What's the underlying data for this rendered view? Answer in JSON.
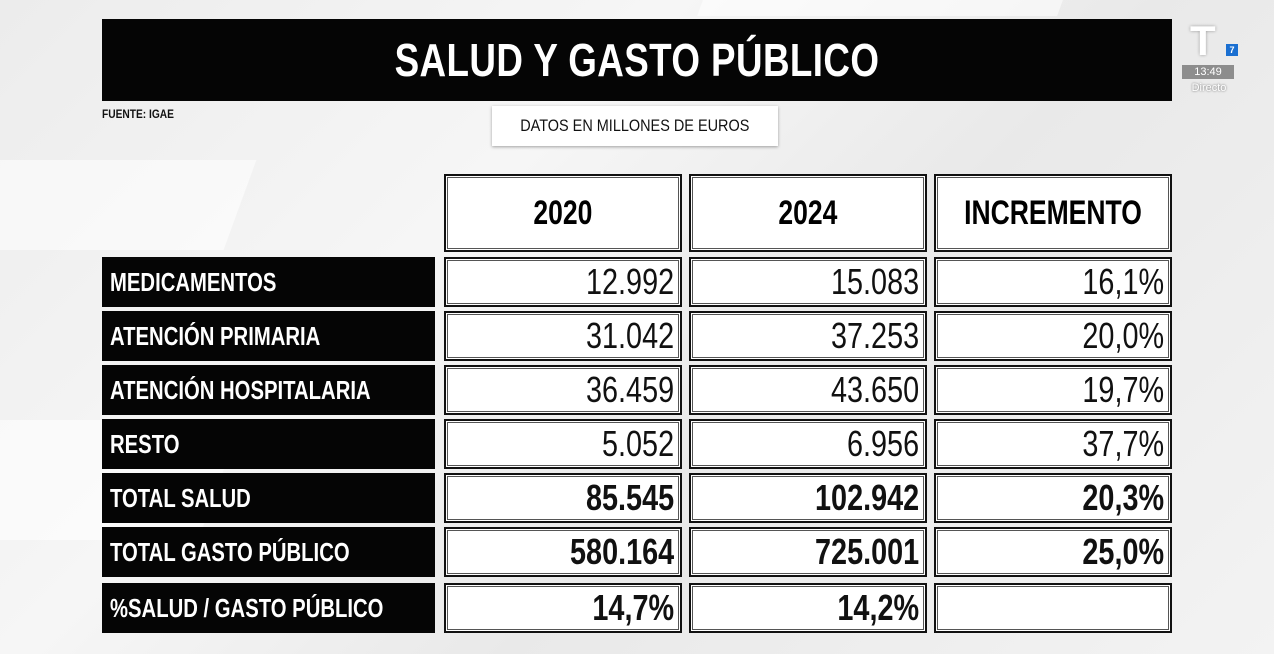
{
  "title": "SALUD Y GASTO PÚBLICO",
  "source": "FUENTE: IGAE",
  "units": "DATOS EN MILLONES DE EUROS",
  "channel": {
    "logo": "T",
    "badge": "7",
    "time": "13:49",
    "status": "Directo"
  },
  "table": {
    "headers": [
      "2020",
      "2024",
      "INCREMENTO"
    ],
    "rows": [
      {
        "label": "MEDICAMENTOS",
        "v2020": "12.992",
        "v2024": "15.083",
        "inc": "16,1%"
      },
      {
        "label": "ATENCIÓN PRIMARIA",
        "v2020": "31.042",
        "v2024": "37.253",
        "inc": "20,0%"
      },
      {
        "label": "ATENCIÓN HOSPITALARIA",
        "v2020": "36.459",
        "v2024": "43.650",
        "inc": "19,7%"
      },
      {
        "label": "RESTO",
        "v2020": "5.052",
        "v2024": "6.956",
        "inc": "37,7%"
      },
      {
        "label": "TOTAL SALUD",
        "v2020": "85.545",
        "v2024": "102.942",
        "inc": "20,3%"
      },
      {
        "label": "TOTAL GASTO PÚBLICO",
        "v2020": "580.164",
        "v2024": "725.001",
        "inc": "25,0%"
      },
      {
        "label": "%SALUD / GASTO PÚBLICO",
        "v2020": "14,7%",
        "v2024": "14,2%",
        "inc": ""
      }
    ]
  }
}
